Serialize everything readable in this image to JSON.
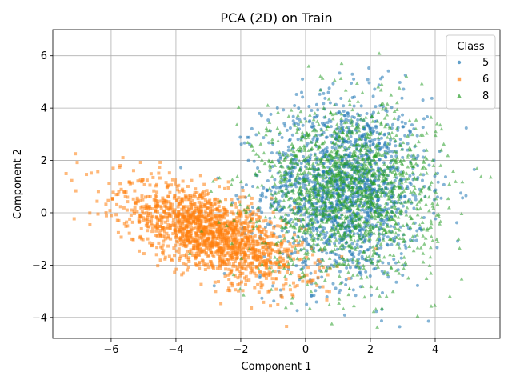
{
  "chart_data": {
    "type": "scatter",
    "title": "PCA (2D) on Train",
    "xlabel": "Component 1",
    "ylabel": "Component 2",
    "xlim": [
      -7.8,
      6.0
    ],
    "ylim": [
      -4.8,
      7.0
    ],
    "xticks": [
      -6,
      -4,
      -2,
      0,
      2,
      4
    ],
    "yticks": [
      -4,
      -2,
      0,
      2,
      4,
      6
    ],
    "xtick_labels": [
      "−6",
      "−4",
      "−2",
      "0",
      "2",
      "4"
    ],
    "ytick_labels": [
      "−4",
      "−2",
      "0",
      "2",
      "4",
      "6"
    ],
    "grid": true,
    "legend": {
      "title": "Class",
      "placement": "top-right"
    },
    "series": [
      {
        "name": "5",
        "marker": "circle",
        "color": "#1f77b4",
        "cluster": {
          "center": [
            1.2,
            0.9
          ],
          "spread": [
            1.25,
            1.75
          ],
          "approx_count": 3000
        }
      },
      {
        "name": "6",
        "marker": "square",
        "color": "#ff7f0e",
        "cluster": {
          "center": [
            -2.9,
            -0.8
          ],
          "spread": [
            1.4,
            1.35
          ],
          "approx_count": 3000
        }
      },
      {
        "name": "8",
        "marker": "triangle",
        "color": "#2ca02c",
        "cluster": {
          "center": [
            1.3,
            0.8
          ],
          "spread": [
            1.35,
            1.6
          ],
          "approx_count": 3000
        }
      }
    ]
  }
}
